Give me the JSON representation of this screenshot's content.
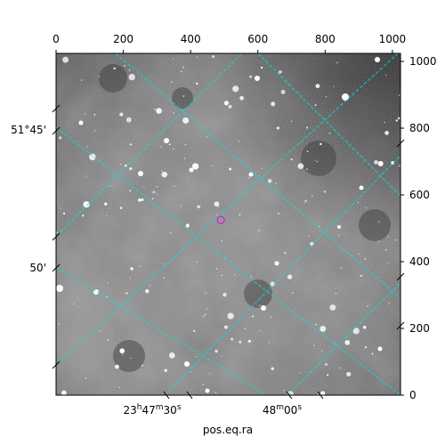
{
  "figure": {
    "xlabel": "pos.eq.ra",
    "background_color": "#ffffff",
    "grid_color": "#00e5e5",
    "marker_color": "#d020d0",
    "frame_color": "#000000"
  },
  "pixel_axes": {
    "x_range": [
      0,
      1024
    ],
    "y_range": [
      0,
      1024
    ],
    "top_ticks": [
      "0",
      "200",
      "400",
      "600",
      "800",
      "1000"
    ],
    "top_tick_values": [
      0,
      200,
      400,
      600,
      800,
      1000
    ],
    "right_ticks": [
      "0",
      "200",
      "400",
      "600",
      "800",
      "1000"
    ],
    "right_tick_values": [
      0,
      200,
      400,
      600,
      800,
      1000
    ]
  },
  "world_axes": {
    "bottom_ticks": [
      {
        "label_main": "23",
        "sup1": "h",
        "mid": "47",
        "sup2": "m",
        "tail": "30",
        "sup3": "s"
      },
      {
        "label_main": "48",
        "sup1": "m",
        "mid": "00",
        "sup2": "s",
        "tail": "",
        "sup3": ""
      }
    ],
    "left_ticks": [
      "51°45'",
      "50'"
    ]
  },
  "image": {
    "description_tag": "grayscale-star-field",
    "marker": {
      "shape": "circle",
      "x_pix": 490,
      "y_pix": 525
    }
  }
}
